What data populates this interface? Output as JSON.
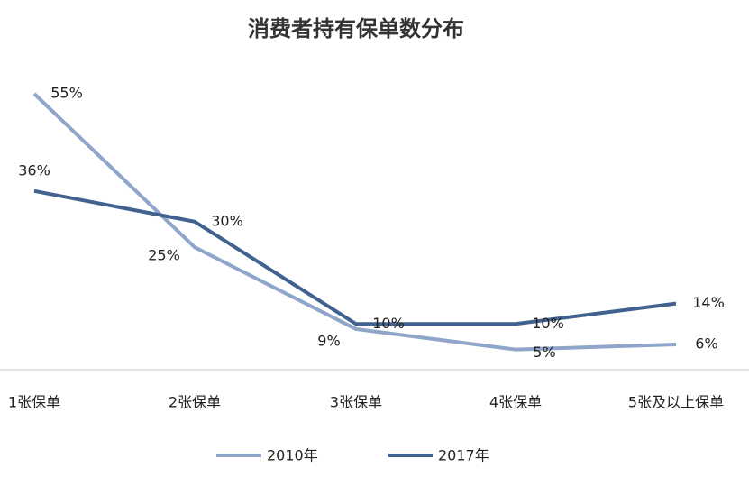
{
  "chart_data": {
    "type": "line",
    "title": "消费者持有保单数分布",
    "categories": [
      "1张保单",
      "2张保单",
      "3张保单",
      "4张保单",
      "5张及以上保单"
    ],
    "series": [
      {
        "name": "2010年",
        "color": "#8fa5c9",
        "values": [
          55,
          25,
          9,
          5,
          6
        ],
        "value_labels": [
          "55%",
          "25%",
          "9%",
          "5%",
          "6%"
        ]
      },
      {
        "name": "2017年",
        "color": "#41618f",
        "values": [
          36,
          30,
          10,
          10,
          14
        ],
        "value_labels": [
          "36%",
          "30%",
          "10%",
          "10%",
          "14%"
        ]
      }
    ],
    "legend": "bottom"
  }
}
